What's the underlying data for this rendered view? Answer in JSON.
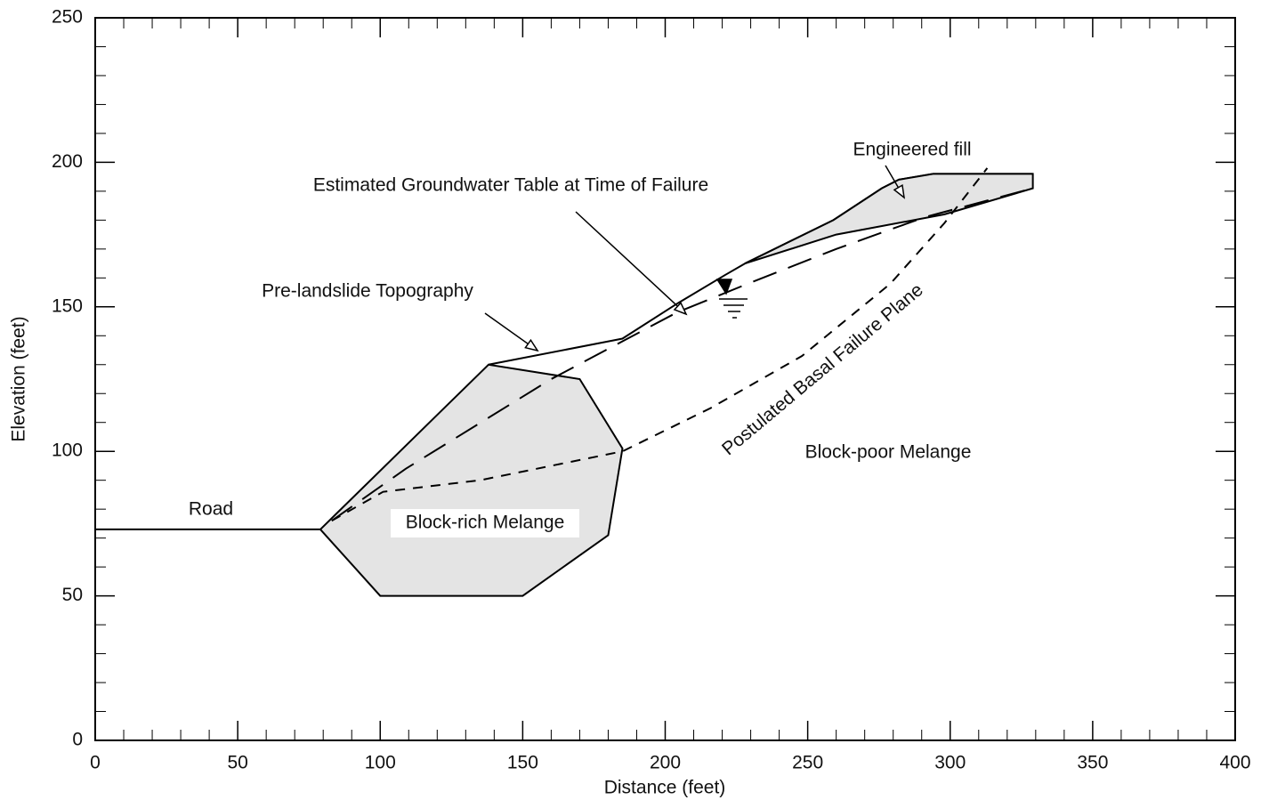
{
  "chart_data": {
    "type": "line",
    "x_label": "Distance (feet)",
    "y_label": "Elevation (feet)",
    "xlim": [
      0,
      400
    ],
    "ylim": [
      0,
      250
    ],
    "xticks": [
      0,
      50,
      100,
      150,
      200,
      250,
      300,
      350,
      400
    ],
    "yticks": [
      0,
      50,
      100,
      150,
      200,
      250
    ],
    "series": [
      {
        "x": [
          0,
          79
        ],
        "values": [
          73,
          73
        ],
        "color": "#000000",
        "style": "solid"
      },
      {
        "x": [
          79,
          100,
          150,
          180,
          185,
          170,
          138
        ],
        "values": [
          73,
          50,
          50,
          71,
          101,
          125,
          130
        ],
        "color": "#000000",
        "style": "solid",
        "fill": "#e4e4e4"
      },
      {
        "x": [
          138,
          185,
          204,
          221,
          228,
          259,
          276,
          282,
          294,
          329
        ],
        "values": [
          130,
          139,
          151,
          161,
          165,
          180,
          191,
          194,
          196,
          196
        ],
        "color": "#000000",
        "style": "solid"
      },
      {
        "x": [
          228,
          259,
          276,
          282,
          294,
          329,
          329,
          298,
          260
        ],
        "values": [
          165,
          180,
          191,
          194,
          196,
          196,
          191,
          182,
          175
        ],
        "color": "#000000",
        "style": "solid",
        "fill": "#e4e4e4"
      },
      {
        "x": [
          83,
          109,
          160,
          204,
          229,
          260,
          291,
          329
        ],
        "values": [
          76,
          94,
          125,
          148,
          158,
          170,
          181,
          191
        ],
        "color": "#000000",
        "style": "long-dash"
      },
      {
        "x": [
          83,
          101,
          135,
          185,
          216,
          248,
          279,
          298,
          313
        ],
        "values": [
          76,
          86,
          90,
          100,
          115,
          133,
          158,
          179,
          198
        ],
        "color": "#000000",
        "style": "short-dash"
      }
    ],
    "annotations": [
      {
        "text": "Road"
      },
      {
        "text": "Block-rich Melange"
      },
      {
        "text": "Block-poor Melange"
      },
      {
        "text": "Postulated Basal Failure Plane"
      },
      {
        "text": "Pre-landslide Topography"
      },
      {
        "text": "Estimated Groundwater Table at Time of Failure"
      },
      {
        "text": "Engineered fill"
      }
    ]
  }
}
